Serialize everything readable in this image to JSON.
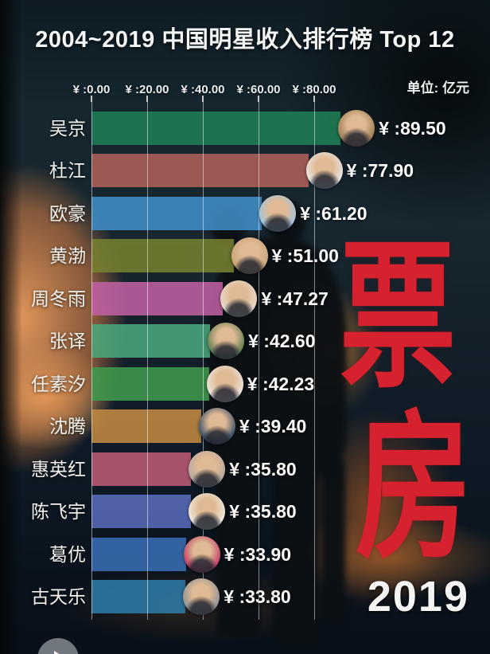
{
  "chart_data": {
    "type": "bar",
    "orientation": "horizontal",
    "title": "2004~2019 中国明星收入排行榜 Top 12",
    "unit_label": "单位: 亿元",
    "year": "2019",
    "categories": [
      "吴京",
      "杜江",
      "欧豪",
      "黄渤",
      "周冬雨",
      "张译",
      "任素汐",
      "沈腾",
      "惠英红",
      "陈飞宇",
      "葛优",
      "古天乐"
    ],
    "values": [
      89.5,
      77.9,
      61.2,
      51.0,
      47.27,
      42.6,
      42.23,
      39.4,
      35.8,
      35.8,
      33.9,
      33.8
    ],
    "value_labels": [
      "¥ :89.50",
      "¥ :77.90",
      "¥ :61.20",
      "¥ :51.00",
      "¥ :47.27",
      "¥ :42.60",
      "¥ :42.23",
      "¥ :39.40",
      "¥ :35.80",
      "¥ :35.80",
      "¥ :33.90",
      "¥ :33.80"
    ],
    "x_ticks": [
      0,
      20,
      40,
      60,
      80
    ],
    "x_tick_labels": [
      "¥ :0.00",
      "¥ :20.00",
      "¥ :40.00",
      "¥ :60.00",
      "¥ :80.00"
    ],
    "xlim": [
      0,
      100
    ],
    "grid": true,
    "legend": false,
    "bar_colors": [
      "#1f7e55",
      "#b06159",
      "#3f8fc9",
      "#76812f",
      "#c161a3",
      "#49a87c",
      "#3f9a4d",
      "#c38a41",
      "#bf5c76",
      "#5b6cbb",
      "#3a6eb5",
      "#2d7ca9"
    ],
    "avatar_colors": [
      "#9c7a52",
      "#e9e9e9",
      "#9fc4e0",
      "#c9a276",
      "#e7d9cf",
      "#5d7a4e",
      "#ece7e0",
      "#2e4a66",
      "#b4a9a2",
      "#f0ece4",
      "#c23a68",
      "#8a8f96"
    ]
  },
  "watermark": {
    "char_top": "票",
    "char_bottom": "房",
    "color": "#d6212e"
  },
  "player": {
    "play_icon": "play-triangle"
  }
}
